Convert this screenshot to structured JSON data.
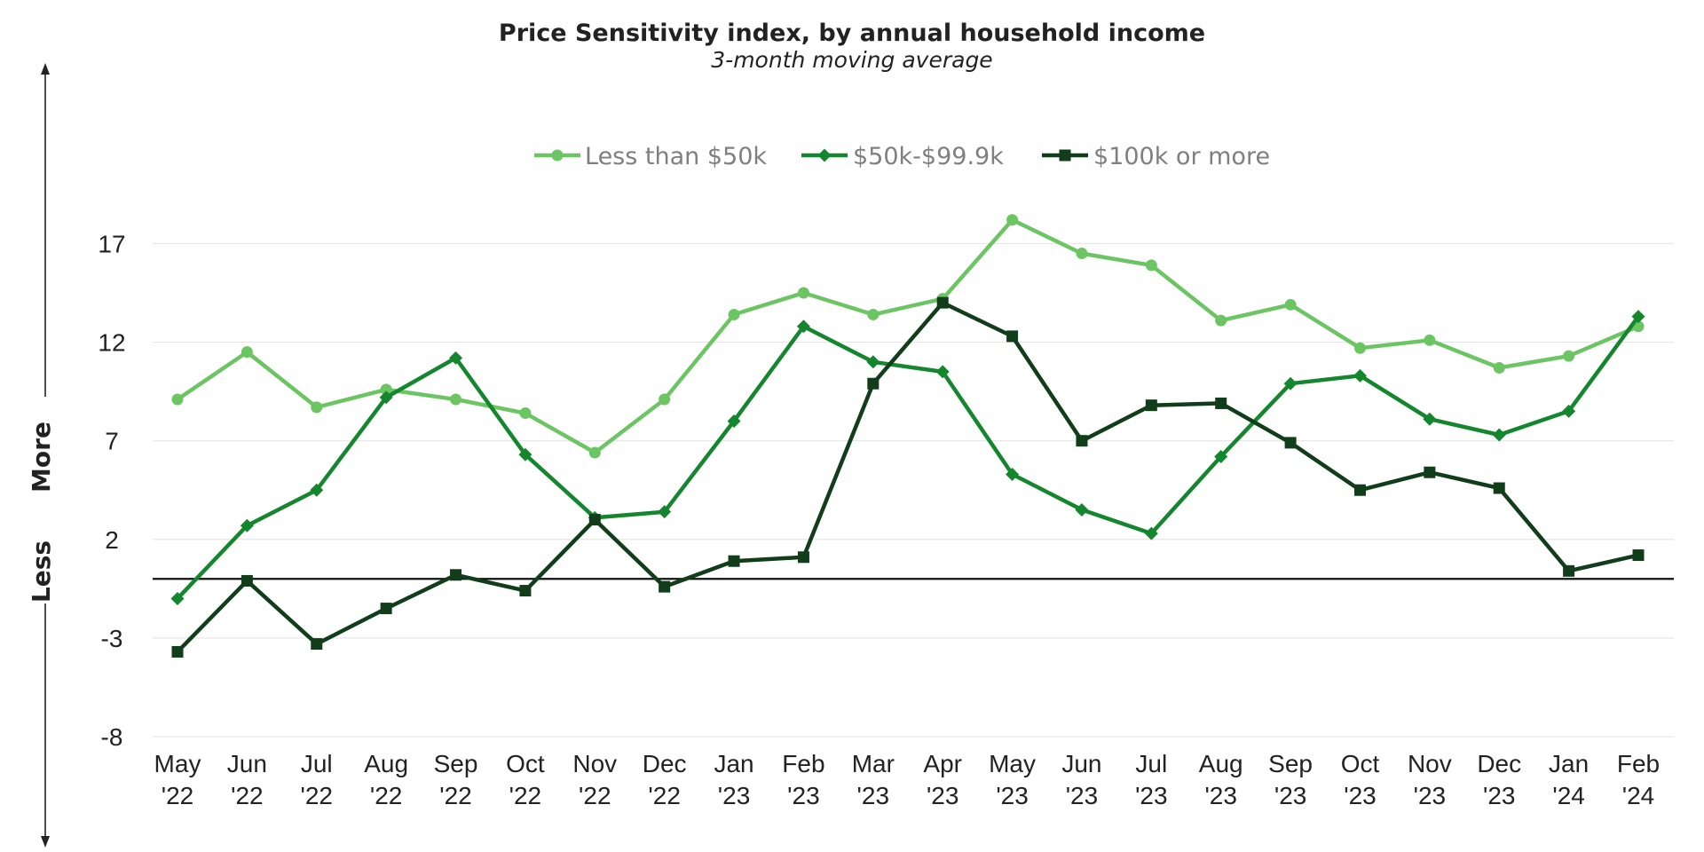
{
  "chart_data": {
    "type": "line",
    "title": "Price Sensitivity index, by annual household income",
    "subtitle": "3-month moving average",
    "side_label_low": "Less",
    "side_label_high": "More",
    "categories": [
      [
        "May",
        "'22"
      ],
      [
        "Jun",
        "'22"
      ],
      [
        "Jul",
        "'22"
      ],
      [
        "Aug",
        "'22"
      ],
      [
        "Sep",
        "'22"
      ],
      [
        "Oct",
        "'22"
      ],
      [
        "Nov",
        "'22"
      ],
      [
        "Dec",
        "'22"
      ],
      [
        "Jan",
        "'23"
      ],
      [
        "Feb",
        "'23"
      ],
      [
        "Mar",
        "'23"
      ],
      [
        "Apr",
        "'23"
      ],
      [
        "May",
        "'23"
      ],
      [
        "Jun",
        "'23"
      ],
      [
        "Jul",
        "'23"
      ],
      [
        "Aug",
        "'23"
      ],
      [
        "Sep",
        "'23"
      ],
      [
        "Oct",
        "'23"
      ],
      [
        "Nov",
        "'23"
      ],
      [
        "Dec",
        "'23"
      ],
      [
        "Jan",
        "'24"
      ],
      [
        "Feb",
        "'24"
      ]
    ],
    "y_ticks": [
      -8,
      -3,
      2,
      7,
      12,
      17
    ],
    "ylim": [
      -8,
      19
    ],
    "grid": true,
    "legend_position": "top-center",
    "series": [
      {
        "name": "Less than $50k",
        "color": "#6cc563",
        "marker": "circle",
        "values": [
          9.1,
          11.5,
          8.7,
          9.6,
          9.1,
          8.4,
          6.4,
          9.1,
          13.4,
          14.5,
          13.4,
          14.2,
          18.2,
          16.5,
          15.9,
          13.1,
          13.9,
          11.7,
          12.1,
          10.7,
          11.3,
          12.8
        ]
      },
      {
        "name": "$50k-$99.9k",
        "color": "#14862e",
        "marker": "diamond",
        "values": [
          -1.0,
          2.7,
          4.5,
          9.2,
          11.2,
          6.3,
          3.1,
          3.4,
          8.0,
          12.8,
          11.0,
          10.5,
          5.3,
          3.5,
          2.3,
          6.2,
          9.9,
          10.3,
          8.1,
          7.3,
          8.5,
          13.3
        ]
      },
      {
        "name": "$100k or more",
        "color": "#113d1a",
        "marker": "square",
        "values": [
          -3.7,
          -0.1,
          -3.3,
          -1.5,
          0.2,
          -0.6,
          3.0,
          -0.4,
          0.9,
          1.1,
          9.9,
          14.0,
          12.3,
          7.0,
          8.8,
          8.9,
          6.9,
          4.5,
          5.4,
          4.6,
          0.4,
          1.2
        ]
      }
    ]
  }
}
